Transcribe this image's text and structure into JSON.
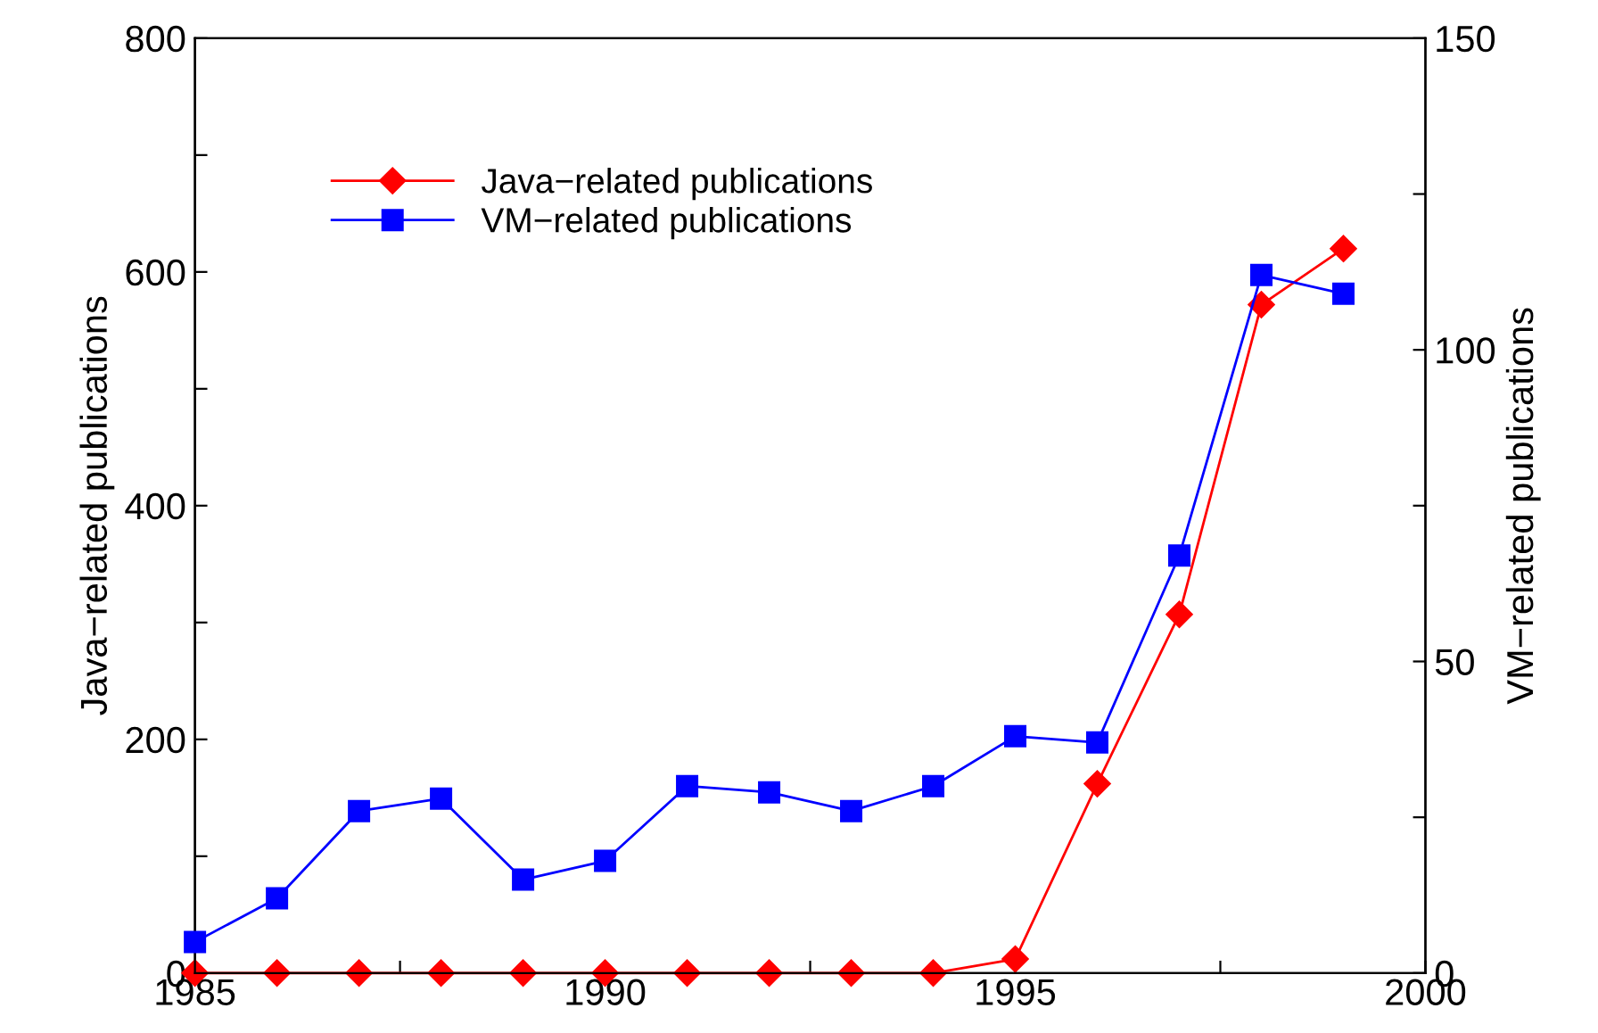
{
  "chart_data": {
    "type": "line",
    "xlabel": null,
    "ylabel": "Java−related publications",
    "y2label": "VM−related publications",
    "x": [
      1985,
      1986,
      1987,
      1988,
      1989,
      1990,
      1991,
      1992,
      1993,
      1994,
      1995,
      1996,
      1997,
      1998,
      1999
    ],
    "series": [
      {
        "name": "Java−related publications",
        "color": "#ff0000",
        "marker": "diamond",
        "values": [
          0,
          0,
          0,
          0,
          0,
          0,
          0,
          0,
          0,
          0,
          12,
          162,
          307,
          572,
          620
        ]
      },
      {
        "name": "VM−related publications",
        "color": "#0000ff",
        "marker": "square",
        "axis": "y2",
        "values": [
          5,
          12,
          26,
          28,
          15,
          18,
          30,
          29,
          26,
          30,
          38,
          37,
          67,
          112,
          109
        ]
      }
    ],
    "xlim": [
      1985,
      2000
    ],
    "xticks": [
      1985,
      {
        "value": 1987.5,
        "label": null
      },
      1990,
      {
        "value": 1992.5,
        "label": null
      },
      1995,
      {
        "value": 1997.5,
        "label": null
      },
      2000
    ],
    "ylim": [
      0,
      800
    ],
    "yticks": [
      0,
      {
        "value": 100,
        "label": null
      },
      200,
      {
        "value": 300,
        "label": null
      },
      400,
      {
        "value": 500,
        "label": null
      },
      600,
      {
        "value": 700,
        "label": null
      },
      800
    ],
    "y2lim": [
      0,
      150
    ],
    "y2ticks": [
      0,
      {
        "value": 25,
        "label": null
      },
      50,
      {
        "value": 75,
        "label": null
      },
      100,
      {
        "value": 125,
        "label": null
      },
      150
    ],
    "legend": "top left",
    "grid": false,
    "line_style": "solid"
  }
}
